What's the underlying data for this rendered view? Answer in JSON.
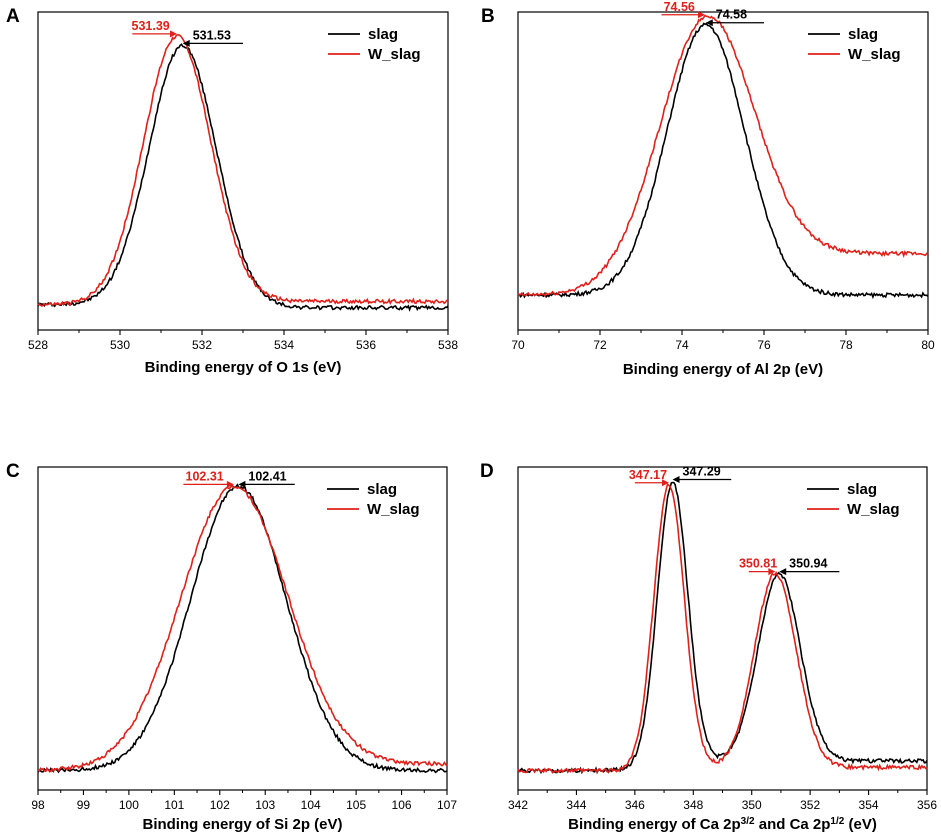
{
  "colors": {
    "slag": "#000000",
    "w_slag": "#e0201a",
    "axis": "#000000"
  },
  "chart_data": [
    {
      "panel": "A",
      "type": "line",
      "xlabel": "Binding energy of O 1s (eV)",
      "ylabel": "",
      "xlim": [
        528,
        538
      ],
      "ylim": [
        0,
        1
      ],
      "xticks": [
        "528",
        "530",
        "532",
        "534",
        "536",
        "538"
      ],
      "legend": {
        "position": "top-right",
        "entries": [
          "slag",
          "W_slag"
        ]
      },
      "series": [
        {
          "name": "slag",
          "peaks": [
            [
              531.53,
              0.82,
              0.82
            ]
          ],
          "base_left": 0.08,
          "base_right": 0.07
        },
        {
          "name": "W_slag",
          "peaks": [
            [
              531.39,
              0.84,
              0.82
            ]
          ],
          "base_left": 0.08,
          "base_right": 0.09
        }
      ],
      "annotations": [
        {
          "series": "W_slag",
          "label": "531.39",
          "x": 531.39,
          "from": 530.3,
          "text_side": "left"
        },
        {
          "series": "slag",
          "label": "531.53",
          "x": 531.53,
          "to": 533.0,
          "text_side": "right"
        }
      ]
    },
    {
      "panel": "B",
      "type": "line",
      "xlabel": "Binding energy of Al 2p (eV)",
      "ylabel": "",
      "xlim": [
        70,
        80
      ],
      "ylim": [
        0,
        1
      ],
      "xticks": [
        "70",
        "72",
        "74",
        "76",
        "78",
        "80"
      ],
      "legend": {
        "position": "top-right",
        "entries": [
          "slag",
          "W_slag"
        ]
      },
      "series": [
        {
          "name": "slag",
          "peaks": [
            [
              74.58,
              0.85,
              0.95
            ]
          ],
          "base_left": 0.11,
          "base_right": 0.11
        },
        {
          "name": "W_slag",
          "peaks": [
            [
              74.56,
              0.81,
              1.15
            ]
          ],
          "base_left": 0.11,
          "base_right": 0.24
        }
      ],
      "annotations": [
        {
          "series": "W_slag",
          "label": "74.56",
          "x": 74.56,
          "from": 73.5,
          "text_side": "left"
        },
        {
          "series": "slag",
          "label": "74.58",
          "x": 74.58,
          "to": 76.0,
          "text_side": "right"
        }
      ]
    },
    {
      "panel": "C",
      "type": "line",
      "xlabel": "Binding energy of Si 2p (eV)",
      "ylabel": "",
      "xlim": [
        98,
        107
      ],
      "ylim": [
        0,
        1
      ],
      "xticks": [
        "98",
        "99",
        "100",
        "101",
        "102",
        "103",
        "104",
        "105",
        "106",
        "107"
      ],
      "legend": {
        "position": "top-right",
        "entries": [
          "slag",
          "W_slag"
        ]
      },
      "series": [
        {
          "name": "slag",
          "peaks": [
            [
              102.41,
              0.88,
              1.05
            ]
          ],
          "base_left": 0.06,
          "base_right": 0.06
        },
        {
          "name": "W_slag",
          "peaks": [
            [
              102.31,
              0.87,
              1.18
            ]
          ],
          "base_left": 0.06,
          "base_right": 0.08
        }
      ],
      "annotations": [
        {
          "series": "W_slag",
          "label": "102.31",
          "x": 102.31,
          "from": 101.2,
          "text_side": "left"
        },
        {
          "series": "slag",
          "label": "102.41",
          "x": 102.41,
          "to": 103.65,
          "text_side": "right"
        }
      ]
    },
    {
      "panel": "D",
      "type": "line",
      "xlabel": "Binding energy of Ca 2p",
      "xlabel_sup1": "3/2",
      "xlabel_mid": " and Ca 2p",
      "xlabel_sup2": "1/2",
      "xlabel_unit": " (eV)",
      "ylabel": "",
      "xlim": [
        342,
        356
      ],
      "ylim": [
        0,
        1
      ],
      "xticks": [
        "342",
        "344",
        "346",
        "348",
        "350",
        "352",
        "354",
        "356"
      ],
      "legend": {
        "position": "top-right",
        "entries": [
          "slag",
          "W_slag"
        ]
      },
      "series": [
        {
          "name": "slag",
          "peaks": [
            [
              347.29,
              0.88,
              0.52
            ],
            [
              350.94,
              0.58,
              0.72
            ]
          ],
          "base_left": 0.06,
          "base_right": 0.09
        },
        {
          "name": "W_slag",
          "peaks": [
            [
              347.17,
              0.88,
              0.52
            ],
            [
              350.81,
              0.6,
              0.72
            ]
          ],
          "base_left": 0.06,
          "base_right": 0.07
        }
      ],
      "annotations": [
        {
          "series": "W_slag",
          "label": "347.17",
          "x": 347.17,
          "from": 346.0,
          "text_side": "left"
        },
        {
          "series": "slag",
          "label": "347.29",
          "x": 347.29,
          "to": 349.3,
          "text_side": "right"
        },
        {
          "series": "W_slag",
          "label": "350.81",
          "x": 350.81,
          "from": 349.9,
          "text_side": "left"
        },
        {
          "series": "slag",
          "label": "350.94",
          "x": 350.94,
          "to": 353.0,
          "text_side": "right"
        }
      ]
    }
  ]
}
